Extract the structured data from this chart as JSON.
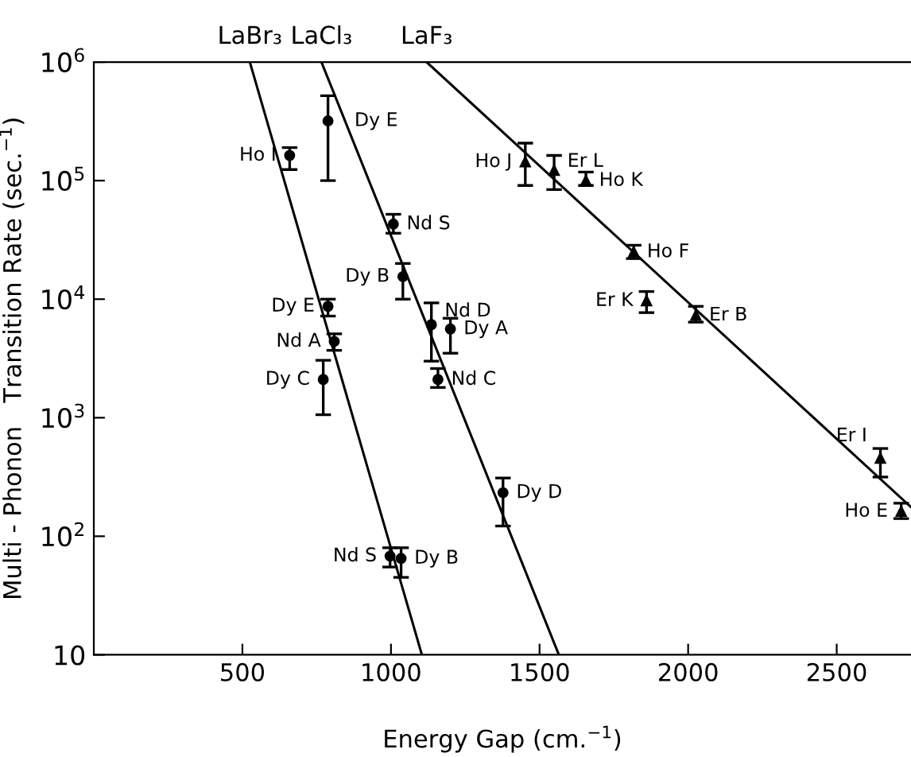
{
  "chart_data": {
    "type": "scatter",
    "xlabel": "Energy Gap (cm.$^{−1}$)",
    "ylabel": "Multi - Phonon   Transition Rate (sec.$^{−1}$)",
    "xlim": [
      0,
      2750
    ],
    "xticks": [
      500,
      1000,
      1500,
      2000,
      2500
    ],
    "ylim": [
      10,
      1000000
    ],
    "yticks": [
      10,
      {
        "value": 100,
        "label": "10$^{2}$"
      },
      {
        "value": 1000,
        "label": "10$^{3}$"
      },
      {
        "value": 10000,
        "label": "10$^{4}$"
      },
      {
        "value": 100000,
        "label": "10$^{5}$"
      },
      {
        "value": 1000000,
        "label": "10$^{6}$"
      }
    ],
    "log": "y",
    "grid": false,
    "series": [
      {
        "marker": "circle",
        "color": "#000000",
        "x": [
          659,
          788,
          809,
          772,
          997,
          1034
        ],
        "values": [
          163000,
          8700,
          4400,
          2100,
          68,
          65
        ],
        "errors": [
          [
            124000,
            190000
          ],
          [
            7200,
            10000
          ],
          [
            3700,
            5100
          ],
          [
            1060,
            3050
          ],
          [
            55,
            80
          ],
          [
            45,
            80
          ]
        ]
      },
      {
        "marker": "circle",
        "color": "#000000",
        "x": [
          788,
          1008,
          1040,
          1136,
          1200,
          1158,
          1377
        ],
        "values": [
          319000,
          43000,
          15500,
          6100,
          5600,
          2100,
          233
        ],
        "errors": [
          [
            100000,
            520000
          ],
          [
            36000,
            52000
          ],
          [
            10000,
            20000
          ],
          [
            3000,
            9300
          ],
          [
            3500,
            6900
          ],
          [
            1800,
            2600
          ],
          [
            122,
            310
          ]
        ]
      },
      {
        "marker": "triangle",
        "color": "#000000",
        "x": [
          1452,
          1549,
          1656,
          1817,
          1860,
          2026,
          2647,
          2717
        ],
        "values": [
          144000,
          122000,
          100000,
          25000,
          9700,
          7300,
          455,
          162
        ],
        "errors": [
          [
            91000,
            207000
          ],
          [
            84000,
            163000
          ],
          [
            91000,
            118000
          ],
          [
            22000,
            28500
          ],
          [
            7700,
            11600
          ],
          [
            6400,
            8700
          ],
          [
            316,
            550
          ],
          [
            141,
            190
          ]
        ]
      },
      {
        "type": "line",
        "name": "LaBr₃",
        "color": "#000000",
        "x": [
          525,
          1104
        ],
        "values": [
          1000000,
          10
        ]
      },
      {
        "type": "line",
        "name": "LaCl₃",
        "color": "#000000",
        "x": [
          766,
          1565
        ],
        "values": [
          1000000,
          10
        ]
      },
      {
        "type": "line",
        "name": "LaF₃",
        "color": "#000000",
        "x": [
          1120,
          2750
        ],
        "values": [
          1000000,
          176
        ]
      }
    ],
    "annotations": [
      {
        "text": "Ho I",
        "x": 659,
        "y": 163000
      },
      {
        "text": "Dy E",
        "x": 788,
        "y": 8700
      },
      {
        "text": "Nd A",
        "x": 809,
        "y": 4400
      },
      {
        "text": "Dy C",
        "x": 772,
        "y": 2100
      },
      {
        "text": "Nd S",
        "x": 997,
        "y": 68
      },
      {
        "text": "Dy B",
        "x": 1034,
        "y": 65
      },
      {
        "text": "Dy E",
        "x": 788,
        "y": 319000
      },
      {
        "text": "Nd S",
        "x": 1008,
        "y": 43000
      },
      {
        "text": "Dy B",
        "x": 1040,
        "y": 15500
      },
      {
        "text": "Nd D",
        "x": 1136,
        "y": 6100
      },
      {
        "text": "Dy A",
        "x": 1200,
        "y": 5600
      },
      {
        "text": "Nd C",
        "x": 1158,
        "y": 2100
      },
      {
        "text": "Dy D",
        "x": 1377,
        "y": 233
      },
      {
        "text": "Ho J",
        "x": 1452,
        "y": 144000
      },
      {
        "text": "Er L",
        "x": 1549,
        "y": 122000
      },
      {
        "text": "Ho K",
        "x": 1656,
        "y": 100000
      },
      {
        "text": "Ho F",
        "x": 1817,
        "y": 25000
      },
      {
        "text": "Er K",
        "x": 1860,
        "y": 9700
      },
      {
        "text": "Er B",
        "x": 2026,
        "y": 7300
      },
      {
        "text": "Er I",
        "x": 2647,
        "y": 455
      },
      {
        "text": "Ho E",
        "x": 2717,
        "y": 162
      }
    ]
  }
}
